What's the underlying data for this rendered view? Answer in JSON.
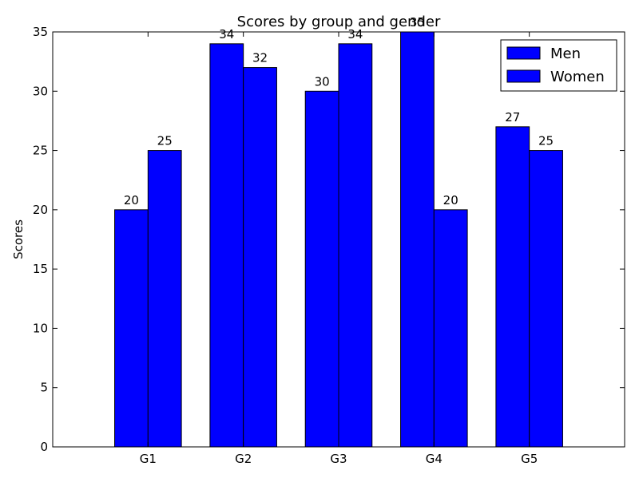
{
  "chart_data": {
    "type": "bar",
    "title": "Scores by group and gender",
    "xlabel": "",
    "ylabel": "Scores",
    "categories": [
      "G1",
      "G2",
      "G3",
      "G4",
      "G5"
    ],
    "series": [
      {
        "name": "Men",
        "values": [
          20,
          34,
          30,
          35,
          27
        ],
        "color": "#0000ff"
      },
      {
        "name": "Women",
        "values": [
          25,
          32,
          34,
          20,
          25
        ],
        "color": "#0000ff"
      }
    ],
    "xlim": [
      -0.65,
      5.35
    ],
    "ylim": [
      0,
      35
    ],
    "yticks": [
      0,
      5,
      10,
      15,
      20,
      25,
      30,
      35
    ],
    "bar_width": 0.35,
    "grid": false,
    "legend_position": "top-right",
    "colors": {
      "bar_fill": "#0000ff",
      "bar_edge": "#000000",
      "axis": "#000000",
      "background": "#ffffff"
    }
  }
}
